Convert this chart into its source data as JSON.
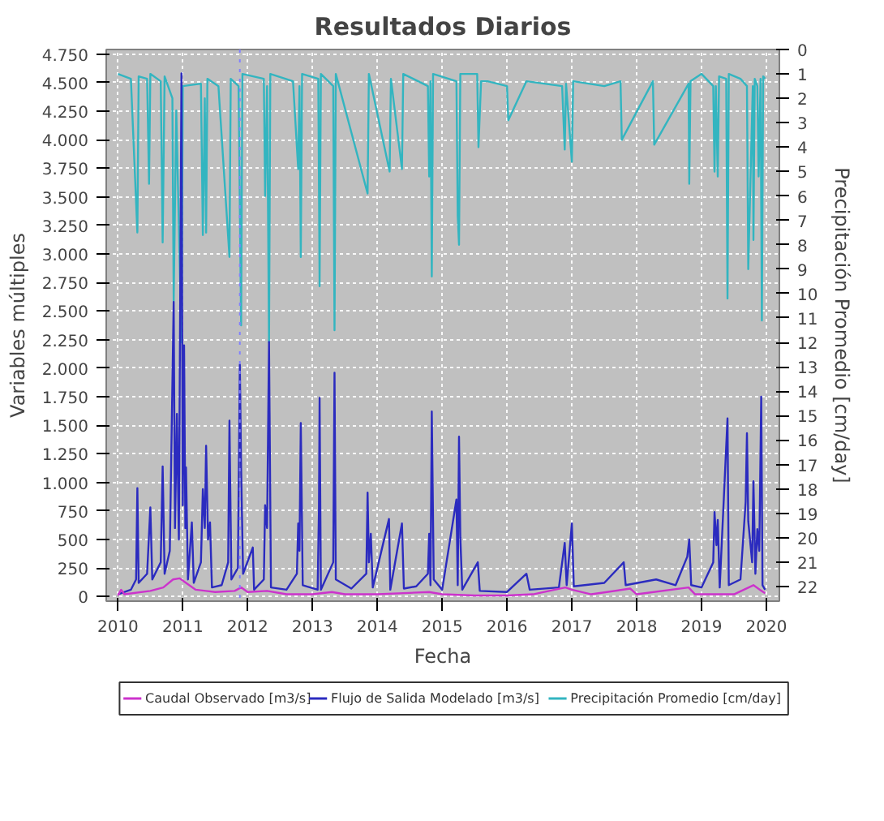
{
  "chart_data": {
    "type": "line",
    "title": "Resultados Diarios",
    "xlabel": "Fecha",
    "ylabel": "Variables múltiples",
    "y2label": "Precipitación Promedio [cm/day]",
    "xlim": [
      2009.82,
      2020.2
    ],
    "xticks": [
      2010,
      2011,
      2012,
      2013,
      2014,
      2015,
      2016,
      2017,
      2018,
      2019,
      2020
    ],
    "ylim": [
      -40,
      4790
    ],
    "yticks": [
      {
        "value": 0,
        "label": "0"
      },
      {
        "value": 250,
        "label": "250"
      },
      {
        "value": 500,
        "label": "500"
      },
      {
        "value": 750,
        "label": "750"
      },
      {
        "value": 1000,
        "label": "1.000"
      },
      {
        "value": 1250,
        "label": "1.250"
      },
      {
        "value": 1500,
        "label": "1.500"
      },
      {
        "value": 1750,
        "label": "1.750"
      },
      {
        "value": 2000,
        "label": "2.000"
      },
      {
        "value": 2250,
        "label": "2.250"
      },
      {
        "value": 2500,
        "label": "2.500"
      },
      {
        "value": 2750,
        "label": "2.750"
      },
      {
        "value": 3000,
        "label": "3.000"
      },
      {
        "value": 3250,
        "label": "3.250"
      },
      {
        "value": 3500,
        "label": "3.500"
      },
      {
        "value": 3750,
        "label": "3.750"
      },
      {
        "value": 4000,
        "label": "4.000"
      },
      {
        "value": 4250,
        "label": "4.250"
      },
      {
        "value": 4500,
        "label": "4.500"
      },
      {
        "value": 4750,
        "label": "4.750"
      }
    ],
    "y2lim": [
      22.6,
      0
    ],
    "y2ticks": [
      0,
      1,
      2,
      3,
      4,
      5,
      6,
      7,
      8,
      9,
      10,
      11,
      12,
      13,
      14,
      15,
      16,
      17,
      18,
      19,
      20,
      21,
      22
    ],
    "grid": true,
    "legend": "bottom",
    "marker": "none",
    "line_style": "solid",
    "ref_lines": [
      {
        "axis": "x",
        "value": 2011.88,
        "label": null,
        "color": "#8080ff",
        "line_style": "dotted"
      }
    ],
    "series": [
      {
        "name": "Precipitación Promedio [cm/day]",
        "color": "#33b5c0",
        "axis": "y2",
        "x": [
          2010.0,
          2010.2,
          2010.3,
          2010.32,
          2010.45,
          2010.48,
          2010.5,
          2010.66,
          2010.69,
          2010.72,
          2010.84,
          2010.86,
          2010.9,
          2010.98,
          2011.0,
          2011.28,
          2011.31,
          2011.34,
          2011.36,
          2011.38,
          2011.55,
          2011.72,
          2011.74,
          2011.86,
          2011.9,
          2011.92,
          2012.25,
          2012.27,
          2012.3,
          2012.33,
          2012.35,
          2012.7,
          2012.78,
          2012.8,
          2012.82,
          2012.84,
          2013.09,
          2013.11,
          2013.13,
          2013.32,
          2013.34,
          2013.36,
          2013.85,
          2013.87,
          2014.19,
          2014.21,
          2014.38,
          2014.4,
          2014.78,
          2014.8,
          2014.82,
          2014.84,
          2014.86,
          2015.22,
          2015.24,
          2015.26,
          2015.28,
          2015.54,
          2015.56,
          2015.6,
          2015.7,
          2016.0,
          2016.02,
          2016.3,
          2016.85,
          2016.89,
          2016.91,
          2017.0,
          2017.02,
          2017.5,
          2017.75,
          2017.77,
          2018.25,
          2018.27,
          2018.8,
          2018.81,
          2018.83,
          2019.0,
          2019.18,
          2019.2,
          2019.22,
          2019.25,
          2019.27,
          2019.38,
          2019.4,
          2019.42,
          2019.6,
          2019.7,
          2019.72,
          2019.79,
          2019.8,
          2019.82,
          2019.86,
          2019.88,
          2019.91,
          2019.93,
          2019.95,
          2019.98
        ],
        "values": [
          1.0,
          1.2,
          7.5,
          1.1,
          1.2,
          5.5,
          1.0,
          1.3,
          7.9,
          1.1,
          2.0,
          10.3,
          2.5,
          12.0,
          1.5,
          1.4,
          7.6,
          2.0,
          7.5,
          1.2,
          1.5,
          8.5,
          1.2,
          1.5,
          11.3,
          1.0,
          1.2,
          6.0,
          1.5,
          12.0,
          1.0,
          1.3,
          4.9,
          1.5,
          8.5,
          1.0,
          1.2,
          9.7,
          1.0,
          1.5,
          11.5,
          1.0,
          5.9,
          1.0,
          5.0,
          1.2,
          4.9,
          1.0,
          1.5,
          5.2,
          1.3,
          9.3,
          1.0,
          1.3,
          6.8,
          8.0,
          1.0,
          1.0,
          4.0,
          1.3,
          1.3,
          1.5,
          2.9,
          1.3,
          1.5,
          4.1,
          1.4,
          4.6,
          1.3,
          1.5,
          1.3,
          3.7,
          1.3,
          3.9,
          1.4,
          5.5,
          1.3,
          1.0,
          1.5,
          5.0,
          1.5,
          5.2,
          1.1,
          1.2,
          10.2,
          1.0,
          1.2,
          1.5,
          9.0,
          1.5,
          7.8,
          1.2,
          1.5,
          5.2,
          1.2,
          11.1,
          1.1,
          1.2
        ]
      },
      {
        "name": "Flujo de Salida Modelado [m3/s]",
        "color": "#2b2bbf",
        "x": [
          2010.0,
          2010.2,
          2010.28,
          2010.3,
          2010.32,
          2010.45,
          2010.5,
          2010.53,
          2010.66,
          2010.69,
          2010.72,
          2010.8,
          2010.86,
          2010.88,
          2010.91,
          2010.94,
          2010.98,
          2011.0,
          2011.02,
          2011.04,
          2011.05,
          2011.08,
          2011.14,
          2011.17,
          2011.28,
          2011.31,
          2011.34,
          2011.36,
          2011.39,
          2011.42,
          2011.45,
          2011.6,
          2011.7,
          2011.72,
          2011.75,
          2011.85,
          2011.88,
          2011.9,
          2011.93,
          2012.08,
          2012.1,
          2012.25,
          2012.27,
          2012.3,
          2012.33,
          2012.36,
          2012.6,
          2012.76,
          2012.78,
          2012.8,
          2012.82,
          2012.85,
          2013.08,
          2013.1,
          2013.11,
          2013.13,
          2013.32,
          2013.34,
          2013.36,
          2013.6,
          2013.83,
          2013.85,
          2013.87,
          2013.9,
          2013.93,
          2014.18,
          2014.2,
          2014.38,
          2014.41,
          2014.6,
          2014.78,
          2014.8,
          2014.82,
          2014.84,
          2014.87,
          2015.0,
          2015.22,
          2015.24,
          2015.26,
          2015.28,
          2015.31,
          2015.55,
          2015.58,
          2016.0,
          2016.3,
          2016.35,
          2016.8,
          2016.89,
          2016.92,
          2017.0,
          2017.03,
          2017.5,
          2017.8,
          2017.83,
          2018.3,
          2018.6,
          2018.78,
          2018.81,
          2018.84,
          2019.0,
          2019.18,
          2019.2,
          2019.23,
          2019.25,
          2019.28,
          2019.4,
          2019.42,
          2019.6,
          2019.68,
          2019.7,
          2019.72,
          2019.78,
          2019.8,
          2019.83,
          2019.86,
          2019.89,
          2019.92,
          2019.94,
          2019.98
        ],
        "values": [
          20,
          60,
          150,
          950,
          120,
          200,
          780,
          150,
          300,
          1140,
          200,
          400,
          2580,
          600,
          1600,
          500,
          4580,
          800,
          2200,
          600,
          1130,
          150,
          650,
          120,
          300,
          940,
          600,
          1320,
          500,
          650,
          80,
          100,
          300,
          1540,
          150,
          250,
          2030,
          1120,
          200,
          430,
          60,
          150,
          800,
          600,
          2230,
          80,
          60,
          200,
          640,
          400,
          1520,
          100,
          60,
          760,
          1740,
          60,
          300,
          1960,
          150,
          70,
          200,
          910,
          300,
          550,
          80,
          680,
          60,
          640,
          70,
          90,
          200,
          550,
          100,
          1620,
          150,
          60,
          850,
          100,
          1400,
          520,
          60,
          300,
          50,
          40,
          200,
          60,
          80,
          470,
          100,
          640,
          90,
          120,
          300,
          100,
          150,
          100,
          350,
          500,
          100,
          80,
          300,
          740,
          450,
          670,
          80,
          1560,
          100,
          150,
          830,
          1430,
          660,
          300,
          1010,
          200,
          590,
          400,
          1750,
          100,
          60
        ]
      },
      {
        "name": "Caudal Observado [m3/s]",
        "color": "#cc33cc",
        "x": [
          2010.0,
          2010.05,
          2010.1,
          2010.5,
          2010.7,
          2010.85,
          2010.95,
          2011.05,
          2011.2,
          2011.5,
          2011.8,
          2011.9,
          2012.0,
          2012.3,
          2012.6,
          2013.0,
          2013.3,
          2013.5,
          2014.0,
          2014.8,
          2015.0,
          2015.5,
          2016.0,
          2016.4,
          2016.9,
          2017.0,
          2017.3,
          2017.9,
          2018.0,
          2018.8,
          2018.9,
          2019.5,
          2019.8,
          2019.9,
          2019.98
        ],
        "values": [
          10,
          60,
          20,
          50,
          80,
          150,
          160,
          120,
          60,
          40,
          50,
          80,
          40,
          50,
          20,
          20,
          40,
          20,
          20,
          40,
          20,
          10,
          10,
          20,
          80,
          60,
          20,
          70,
          20,
          80,
          20,
          20,
          100,
          60,
          30
        ]
      }
    ]
  }
}
